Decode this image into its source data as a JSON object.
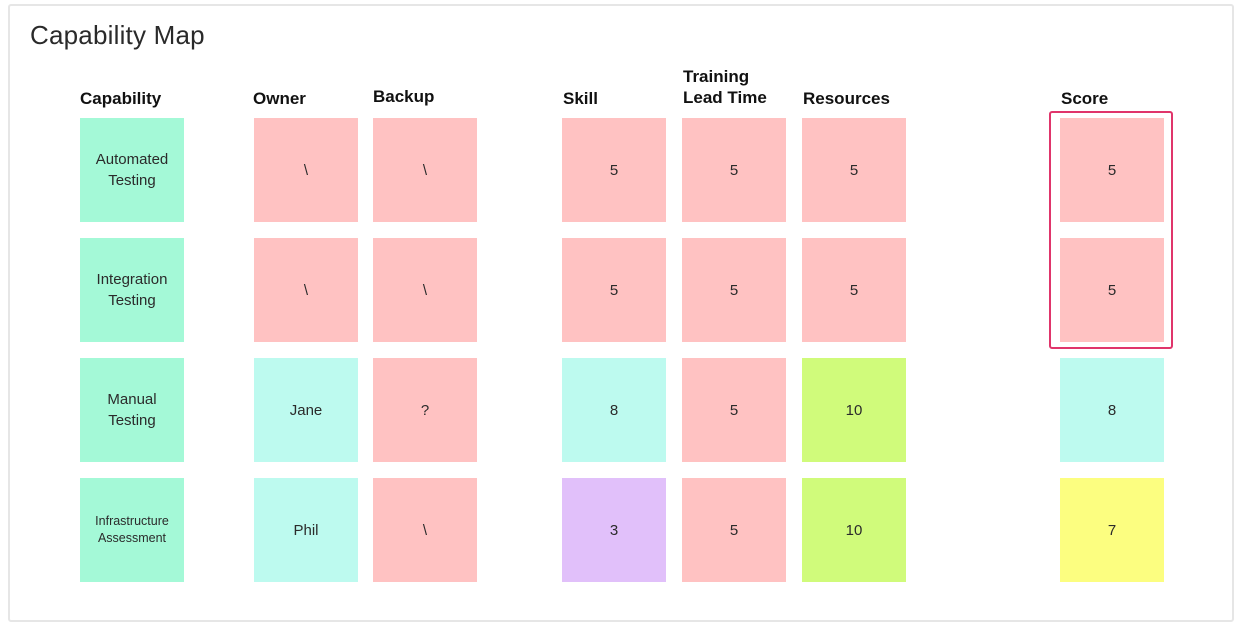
{
  "board": {
    "title": "Capability Map"
  },
  "colors": {
    "green": "#a4f9d7",
    "pink": "#ffc2c2",
    "cyan": "#bdfaef",
    "lime": "#d0fb7b",
    "purple": "#e1c0fa",
    "yellow": "#fcfe80",
    "highlight": "#e0356b"
  },
  "headers": {
    "capability": "Capability",
    "owner": "Owner",
    "backup": "Backup",
    "skill": "Skill",
    "training_lead_time": "Training\nLead Time",
    "resources": "Resources",
    "score": "Score"
  },
  "rows": [
    {
      "capability": {
        "text": "Automated\nTesting",
        "color": "green"
      },
      "owner": {
        "text": "\\",
        "color": "pink"
      },
      "backup": {
        "text": "\\",
        "color": "pink"
      },
      "skill": {
        "text": "5",
        "color": "pink"
      },
      "training": {
        "text": "5",
        "color": "pink"
      },
      "resources": {
        "text": "5",
        "color": "pink"
      },
      "score": {
        "text": "5",
        "color": "pink"
      }
    },
    {
      "capability": {
        "text": "Integration\nTesting",
        "color": "green"
      },
      "owner": {
        "text": "\\",
        "color": "pink"
      },
      "backup": {
        "text": "\\",
        "color": "pink"
      },
      "skill": {
        "text": "5",
        "color": "pink"
      },
      "training": {
        "text": "5",
        "color": "pink"
      },
      "resources": {
        "text": "5",
        "color": "pink"
      },
      "score": {
        "text": "5",
        "color": "pink"
      }
    },
    {
      "capability": {
        "text": "Manual\nTesting",
        "color": "green"
      },
      "owner": {
        "text": "Jane",
        "color": "cyan"
      },
      "backup": {
        "text": "?",
        "color": "pink"
      },
      "skill": {
        "text": "8",
        "color": "cyan"
      },
      "training": {
        "text": "5",
        "color": "pink"
      },
      "resources": {
        "text": "10",
        "color": "lime"
      },
      "score": {
        "text": "8",
        "color": "cyan"
      }
    },
    {
      "capability": {
        "text": "Infrastructure\nAssessment",
        "color": "green"
      },
      "owner": {
        "text": "Phil",
        "color": "cyan"
      },
      "backup": {
        "text": "\\",
        "color": "pink"
      },
      "skill": {
        "text": "3",
        "color": "purple"
      },
      "training": {
        "text": "5",
        "color": "pink"
      },
      "resources": {
        "text": "10",
        "color": "lime"
      },
      "score": {
        "text": "7",
        "color": "yellow"
      }
    }
  ]
}
